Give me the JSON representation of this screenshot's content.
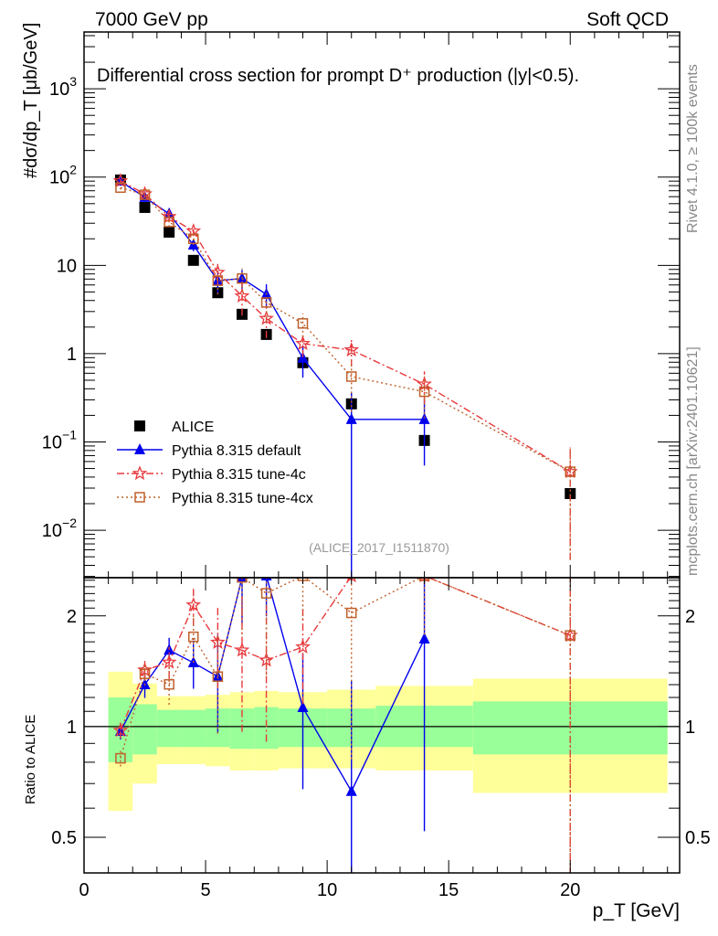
{
  "header": {
    "left": "7000 GeV pp",
    "right": "Soft QCD"
  },
  "side_text": {
    "top": "Rivet 4.1.0, ≥ 100k events",
    "bottom": "mcplots.cern.ch [arXiv:2401.10621]"
  },
  "analysis_id": "(ALICE_2017_I1511870)",
  "chart_data": {
    "type": "scatter",
    "title": "Differential cross section for prompt D⁺ production (|y|<0.5).",
    "xlabel": "p_T [GeV]",
    "ylabel": "#dσ/dp_T [μb/GeV]",
    "ratio_ylabel": "Ratio to ALICE",
    "xlim": [
      0,
      24.5
    ],
    "ylim": [
      0.0029,
      4400
    ],
    "ratio_ylim": [
      0.4,
      2.54
    ],
    "x_ticks": [
      "0",
      "5",
      "10",
      "15",
      "20"
    ],
    "y_ticks": [
      {
        "v": 1000,
        "l": "10",
        "e": "3"
      },
      {
        "v": 100,
        "l": "10",
        "e": "2"
      },
      {
        "v": 10,
        "l": "10",
        "e": ""
      },
      {
        "v": 1,
        "l": "1",
        "e": ""
      },
      {
        "v": 0.1,
        "l": "10",
        "e": "−1"
      },
      {
        "v": 0.01,
        "l": "10",
        "e": "−2"
      }
    ],
    "ratio_ticks": [
      "0.5",
      "1",
      "2"
    ],
    "x": [
      1.5,
      2.5,
      3.5,
      4.5,
      5.5,
      6.5,
      7.5,
      9,
      11,
      14,
      20
    ],
    "bin_edges": [
      1,
      2,
      3,
      4,
      5,
      6,
      7,
      8,
      10,
      12,
      16,
      24
    ],
    "band_inner": {
      "lo": [
        0.8,
        0.84,
        0.88,
        0.88,
        0.88,
        0.87,
        0.87,
        0.88,
        0.88,
        0.88,
        0.84
      ],
      "hi": [
        1.2,
        1.15,
        1.11,
        1.11,
        1.12,
        1.12,
        1.13,
        1.12,
        1.12,
        1.14,
        1.17
      ]
    },
    "band_outer": {
      "lo": [
        0.59,
        0.7,
        0.79,
        0.79,
        0.78,
        0.76,
        0.76,
        0.77,
        0.77,
        0.76,
        0.66
      ],
      "hi": [
        1.41,
        1.31,
        1.21,
        1.21,
        1.22,
        1.24,
        1.25,
        1.24,
        1.26,
        1.29,
        1.35
      ]
    },
    "series": [
      {
        "name": "ALICE",
        "color": "#000000",
        "marker": "square",
        "values": [
          92.7,
          45.3,
          23.8,
          11.4,
          4.9,
          2.79,
          1.65,
          0.79,
          0.27,
          0.104,
          0.026
        ],
        "rel_err": [
          0,
          0,
          0,
          0,
          0,
          0,
          0,
          0,
          0,
          0,
          0
        ]
      },
      {
        "name": "Pythia 8.315 default",
        "color": "#0000ee",
        "marker": "triangle",
        "dash": "",
        "values": [
          90,
          58.9,
          38.4,
          17,
          6.7,
          7.1,
          4.7,
          0.89,
          0.18,
          0.18,
          null
        ],
        "rel_err": [
          0.05,
          0.08,
          0.08,
          0.15,
          0.3,
          0.25,
          0.3,
          0.4,
          1.0,
          0.7,
          0
        ]
      },
      {
        "name": "Pythia 8.315 tune-4c",
        "color": "#e8393c",
        "marker": "star",
        "dash": "8,3,2,3",
        "values": [
          90.5,
          64.5,
          35.6,
          24.4,
          8.3,
          4.5,
          2.5,
          1.3,
          1.1,
          0.45,
          0.046
        ],
        "rel_err": [
          0.05,
          0.06,
          0.1,
          0.12,
          0.25,
          0.4,
          0.4,
          0.3,
          0.35,
          0.4,
          0.9
        ]
      },
      {
        "name": "Pythia 8.315 tune-4cx",
        "color": "#c0602a",
        "marker": "open-square",
        "dash": "2,3",
        "values": [
          76,
          63,
          31,
          20,
          6.7,
          7.1,
          3.8,
          2.2,
          0.55,
          0.37,
          0.046
        ],
        "rel_err": [
          0.05,
          0.07,
          0.12,
          0.15,
          0.3,
          0.3,
          0.4,
          0.3,
          0.6,
          0.5,
          0.9
        ]
      }
    ],
    "legend_position": "lower-left"
  }
}
